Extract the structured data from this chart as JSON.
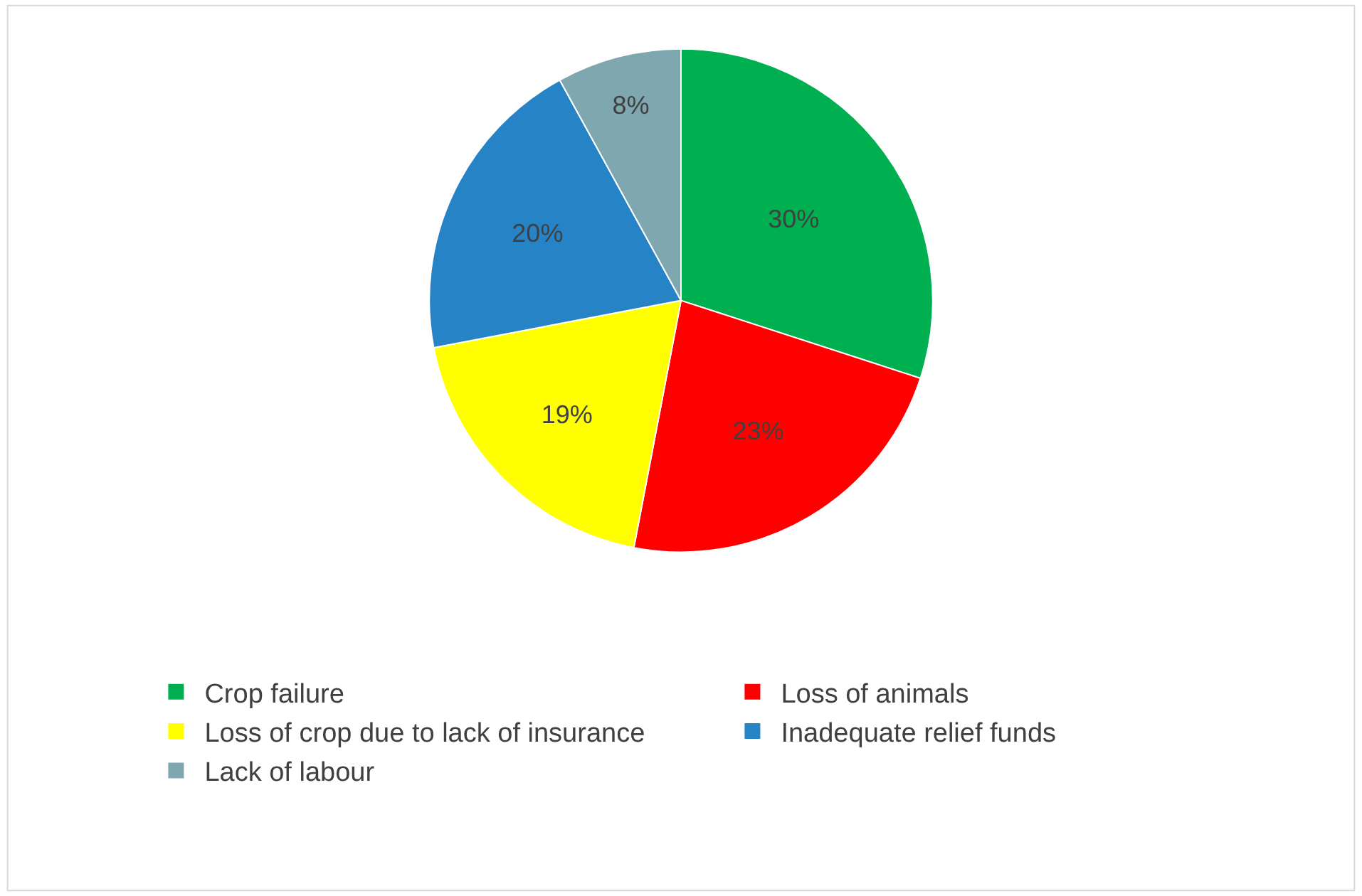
{
  "chart_data": {
    "type": "pie",
    "categories": [
      "Crop failure",
      "Loss of animals",
      "Loss of crop due to lack of insurance",
      "Inadequate relief funds",
      "Lack of labour"
    ],
    "values": [
      30,
      23,
      19,
      20,
      8
    ],
    "colors": [
      "#00b050",
      "#ff0000",
      "#ffff00",
      "#2683c6",
      "#7fa7b0"
    ],
    "value_labels": [
      "30%",
      "23%",
      "19%",
      "20%",
      "8%"
    ],
    "legend": "bottom"
  }
}
